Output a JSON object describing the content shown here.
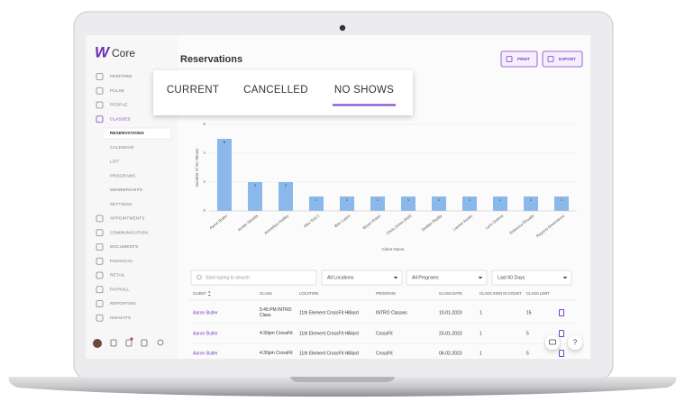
{
  "logo": {
    "mark": "W",
    "text": "Core"
  },
  "sidebar": {
    "top": [
      "PERFORM",
      "PULSE",
      "PEOPLE",
      "CLASSES"
    ],
    "classes_menu": [
      "RESERVATIONS",
      "CALENDAR",
      "LIST",
      "PROGRAMS",
      "MEMBERSHIPS",
      "SETTINGS"
    ],
    "bottom": [
      "APPOINTMENTS",
      "COMMUNICATION",
      "DOCUMENTS",
      "FINANCIAL",
      "RETAIL",
      "PAYROLL",
      "REPORTING",
      "INSIGHTS"
    ]
  },
  "header": {
    "title": "Reservations",
    "buttons": [
      "PRINT",
      "EXPORT"
    ]
  },
  "tabs": [
    "CURRENT",
    "CANCELLED",
    "NO SHOWS"
  ],
  "chart_data": {
    "type": "bar",
    "y_label": "Number of No Shows",
    "x_label": "Client Name",
    "categories": [
      "Aaron Butler",
      "Austin Shields",
      "Ammyliya Hedley",
      "Alex Test 2",
      "Brie Lopes",
      "Bryan Rutan",
      "Chris Jones (trial)",
      "Debbie Raddy",
      "Lauren Austin",
      "Lynn Dubois",
      "Rebecca Rhoads",
      "Rayana Greenstone"
    ],
    "values": [
      5,
      2,
      2,
      1,
      1,
      1,
      1,
      1,
      1,
      1,
      1,
      1
    ],
    "color": "#8ab8ea",
    "ylim": [
      0,
      6
    ],
    "yticks": [
      0,
      2,
      4,
      6
    ],
    "grid": true
  },
  "filters": {
    "search": "Start typing to search",
    "dropdowns": [
      "All Locations",
      "All Programs",
      "Last 60 Days"
    ]
  },
  "table": {
    "columns": [
      "CLIENT",
      "CLASS",
      "LOCATION",
      "PROGRAM",
      "CLASS DATE",
      "CLASS SIGN IN COUNT",
      "CLASS LIMIT"
    ],
    "rows": [
      [
        "Aaron Butler",
        "5:45 PM INTRO Class",
        "11th Element CrossFit Hilliard",
        "INTRO Classes",
        "10-01-2023",
        "1",
        "15"
      ],
      [
        "Aaron Butler",
        "4:30pm CrossFit",
        "11th Element CrossFit Hilliard",
        "CrossFit",
        "23-01-2023",
        "1",
        "5"
      ],
      [
        "Aaron Butler",
        "4:30pm CrossFit",
        "11th Element CrossFit Hilliard",
        "CrossFit",
        "06-02-2023",
        "1",
        "5"
      ]
    ]
  },
  "help": "?"
}
